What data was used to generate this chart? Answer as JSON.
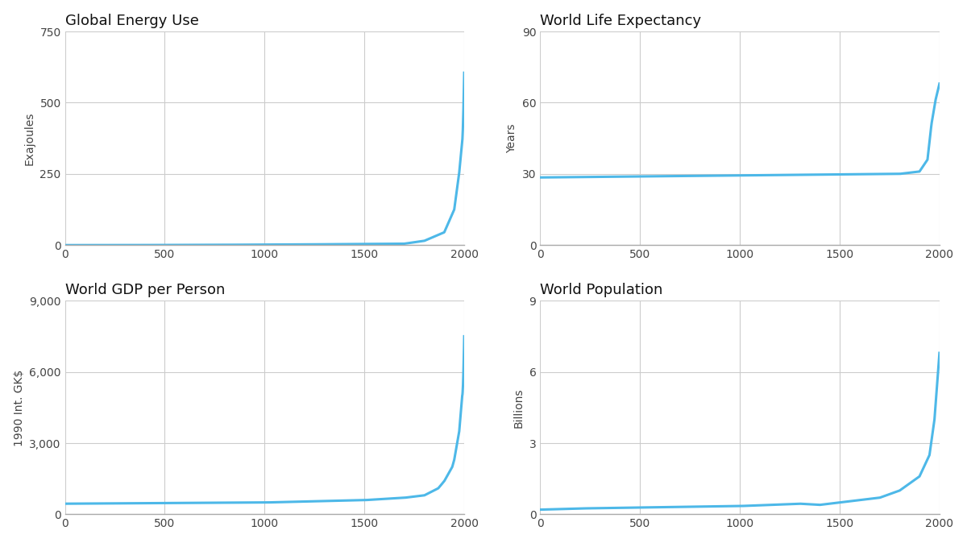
{
  "titles": [
    "Global Energy Use",
    "World Life Expectancy",
    "World GDP per Person",
    "World Population"
  ],
  "ylabels": [
    "Exajoules",
    "Years",
    "1990 Int. GK$",
    "Billions"
  ],
  "line_color": "#4db8e8",
  "line_width": 2.2,
  "background_color": "#ffffff",
  "grid_color": "#cccccc",
  "title_fontsize": 13,
  "label_fontsize": 10,
  "tick_fontsize": 10,
  "plots": [
    {
      "xlim": [
        0,
        2000
      ],
      "ylim": [
        0,
        750
      ],
      "yticks": [
        0,
        250,
        500,
        750
      ],
      "xticks": [
        0,
        500,
        1000,
        1500,
        2000
      ]
    },
    {
      "xlim": [
        0,
        2000
      ],
      "ylim": [
        0,
        90
      ],
      "yticks": [
        0,
        30,
        60,
        90
      ],
      "xticks": [
        0,
        500,
        1000,
        1500,
        2000
      ]
    },
    {
      "xlim": [
        0,
        2000
      ],
      "ylim": [
        0,
        9000
      ],
      "yticks": [
        0,
        3000,
        6000,
        9000
      ],
      "xticks": [
        0,
        500,
        1000,
        1500,
        2000
      ]
    },
    {
      "xlim": [
        0,
        2000
      ],
      "ylim": [
        0,
        9
      ],
      "yticks": [
        0,
        3,
        6,
        9
      ],
      "xticks": [
        0,
        500,
        1000,
        1500,
        2000
      ]
    }
  ]
}
